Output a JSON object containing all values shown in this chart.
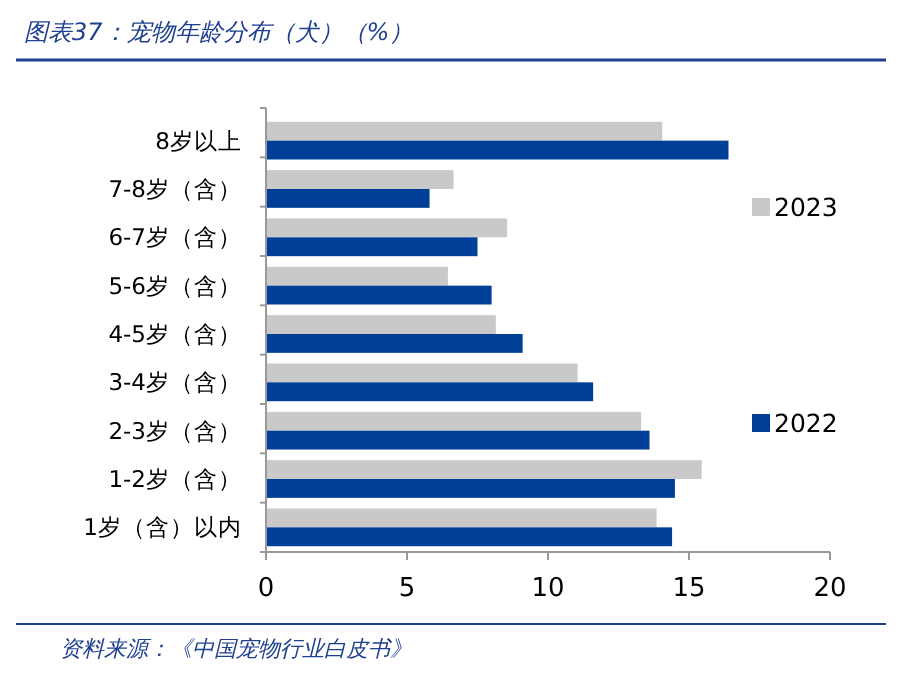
{
  "chart_data": {
    "type": "bar",
    "orientation": "horizontal",
    "title": "图表37：宠物年龄分布（犬）（%）",
    "categories": [
      "8岁以上",
      "7-8岁（含）",
      "6-7岁（含）",
      "5-6岁（含）",
      "4-5岁（含）",
      "3-4岁（含）",
      "2-3岁（含）",
      "1-2岁（含）",
      "1岁（含）以内"
    ],
    "series": [
      {
        "name": "2023",
        "color": "#c9c9c9",
        "values": [
          14.05,
          6.65,
          8.55,
          6.45,
          8.15,
          11.05,
          13.3,
          15.45,
          13.85
        ]
      },
      {
        "name": "2022",
        "color": "#003f98",
        "values": [
          16.4,
          5.8,
          7.5,
          8.0,
          9.1,
          11.6,
          13.6,
          14.5,
          14.4
        ]
      }
    ],
    "xlim": [
      0,
      20
    ],
    "xticks": [
      0,
      5,
      10,
      15,
      20
    ],
    "grid": false,
    "legend": "right",
    "annotations": [
      "资料来源：《中国宠物行业白皮书》"
    ]
  }
}
